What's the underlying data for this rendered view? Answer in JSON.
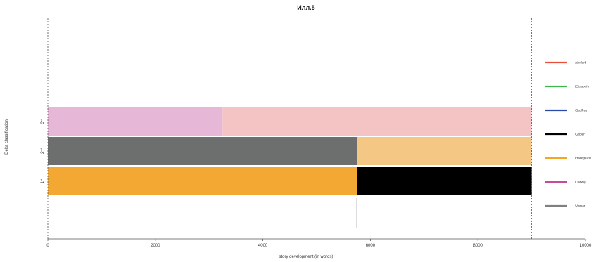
{
  "chart_data": {
    "type": "bar",
    "orientation": "horizontal-stacked",
    "title": "Илл.5",
    "xlabel": "story development (in words)",
    "ylabel": "Delta classification",
    "xlim": [
      0,
      10000
    ],
    "x_ticks": [
      0,
      2000,
      4000,
      6000,
      8000,
      10000
    ],
    "x_tick_labels": [
      "0",
      "2000",
      "4000",
      "6000",
      "8000",
      "10000"
    ],
    "grid": false,
    "legend_position": "right",
    "rows": [
      {
        "label": "3",
        "label_sup": "rd",
        "segments": [
          {
            "series": "Ludwig",
            "start": 0,
            "end": 3250
          },
          {
            "series": "abelard",
            "start": 3250,
            "end": 9000
          }
        ]
      },
      {
        "label": "2",
        "label_sup": "nd",
        "segments": [
          {
            "series": "Vomar",
            "start": 0,
            "end": 5750
          },
          {
            "series": "Hildegarde",
            "start": 5750,
            "end": 9000
          }
        ]
      },
      {
        "label": "1",
        "label_sup": "st",
        "segments": [
          {
            "series": "Hildegarde",
            "start": 0,
            "end": 5750
          },
          {
            "series": "Gobert",
            "start": 5750,
            "end": 9000
          }
        ]
      }
    ],
    "vertical_lines": [
      {
        "x": 0,
        "style": "dashed"
      },
      {
        "x": 9000,
        "style": "dashed"
      }
    ],
    "marker_line": {
      "x": 5750,
      "style": "solid"
    },
    "series": [
      {
        "name": "abelard",
        "color": "#e8503c"
      },
      {
        "name": "Elizabeth",
        "color": "#3cb84a"
      },
      {
        "name": "Godfrey",
        "color": "#2a4aa8"
      },
      {
        "name": "Gobert",
        "color": "#000000"
      },
      {
        "name": "Hildegarde",
        "color": "#f5a623"
      },
      {
        "name": "Ludwig",
        "color": "#c84a9c"
      },
      {
        "name": "Vomar",
        "color": "#808080"
      }
    ],
    "segment_colors": {
      "abelard": "#f4c3c3",
      "Ludwig": "#e6b7d6",
      "Vomar": "#6d6f6e",
      "Hildegarde_row2": "#f4c785",
      "Hildegarde": "#f3a833",
      "Gobert": "#000000"
    }
  }
}
